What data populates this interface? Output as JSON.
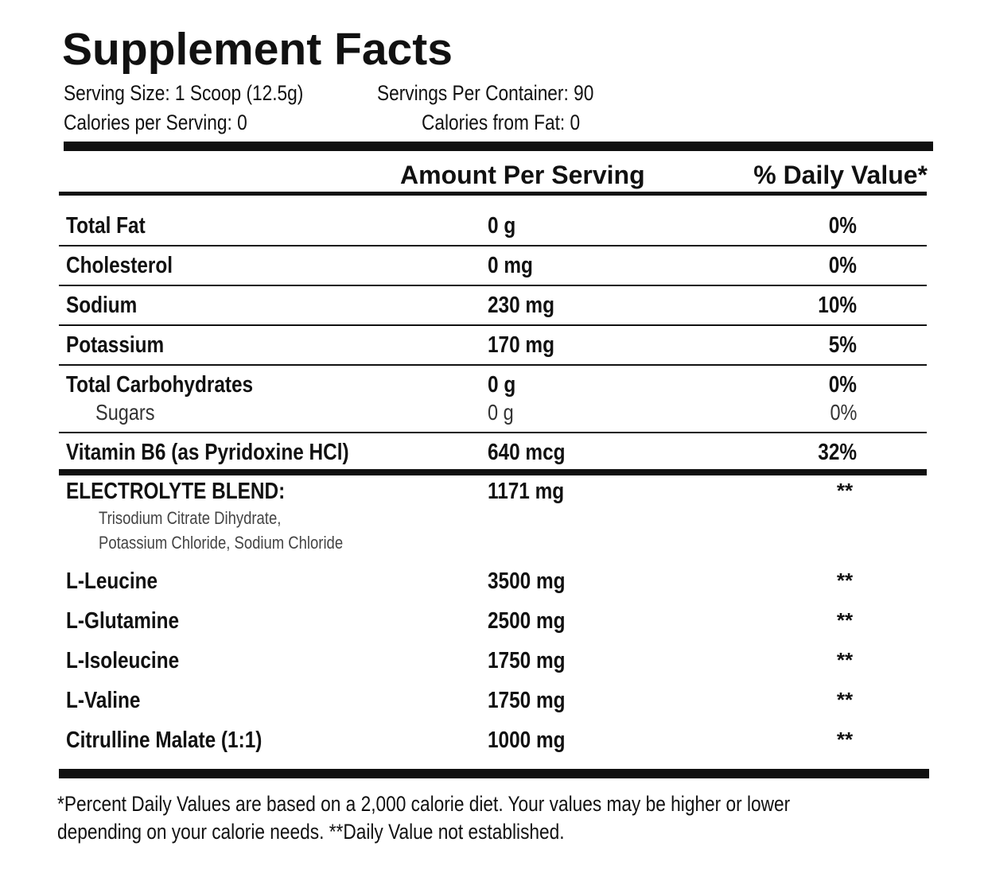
{
  "title": "Supplement Facts",
  "serving": {
    "serving_size": "Serving Size: 1 Scoop (12.5g)",
    "servings_per_container": "Servings Per Container: 90",
    "calories": "Calories per Serving: 0",
    "calories_from_fat": "Calories from Fat: 0"
  },
  "header": {
    "amount": "Amount Per Serving",
    "daily_value": "% Daily Value*"
  },
  "nutrients": [
    {
      "name": "Total Fat",
      "amount": "0 g",
      "dv": "0%"
    },
    {
      "name": "Cholesterol",
      "amount": "0 mg",
      "dv": "0%"
    },
    {
      "name": "Sodium",
      "amount": "230 mg",
      "dv": "10%"
    },
    {
      "name": "Potassium",
      "amount": "170 mg",
      "dv": "5%"
    },
    {
      "name": "Total Carbohydrates",
      "amount": "0 g",
      "dv": "0%",
      "sub": {
        "name": "Sugars",
        "amount": "0 g",
        "dv": "0%"
      }
    },
    {
      "name": "Vitamin B6 (as Pyridoxine HCl)",
      "amount": "640 mcg",
      "dv": "32%"
    }
  ],
  "blend": [
    {
      "name": "ELECTROLYTE BLEND:",
      "amount": "1171 mg",
      "dv": "**",
      "ingredients": [
        "Trisodium Citrate Dihydrate,",
        "Potassium Chloride, Sodium Chloride"
      ]
    },
    {
      "name": "L-Leucine",
      "amount": "3500 mg",
      "dv": "**"
    },
    {
      "name": "L-Glutamine",
      "amount": "2500 mg",
      "dv": "**"
    },
    {
      "name": "L-Isoleucine",
      "amount": "1750 mg",
      "dv": "**"
    },
    {
      "name": "L-Valine",
      "amount": "1750 mg",
      "dv": "**"
    },
    {
      "name": "Citrulline Malate (1:1)",
      "amount": "1000 mg",
      "dv": "**"
    }
  ],
  "footnote": [
    "*Percent Daily Values are based on a 2,000 calorie diet. Your values may be higher or lower",
    "depending on your calorie needs. **Daily Value not established."
  ]
}
